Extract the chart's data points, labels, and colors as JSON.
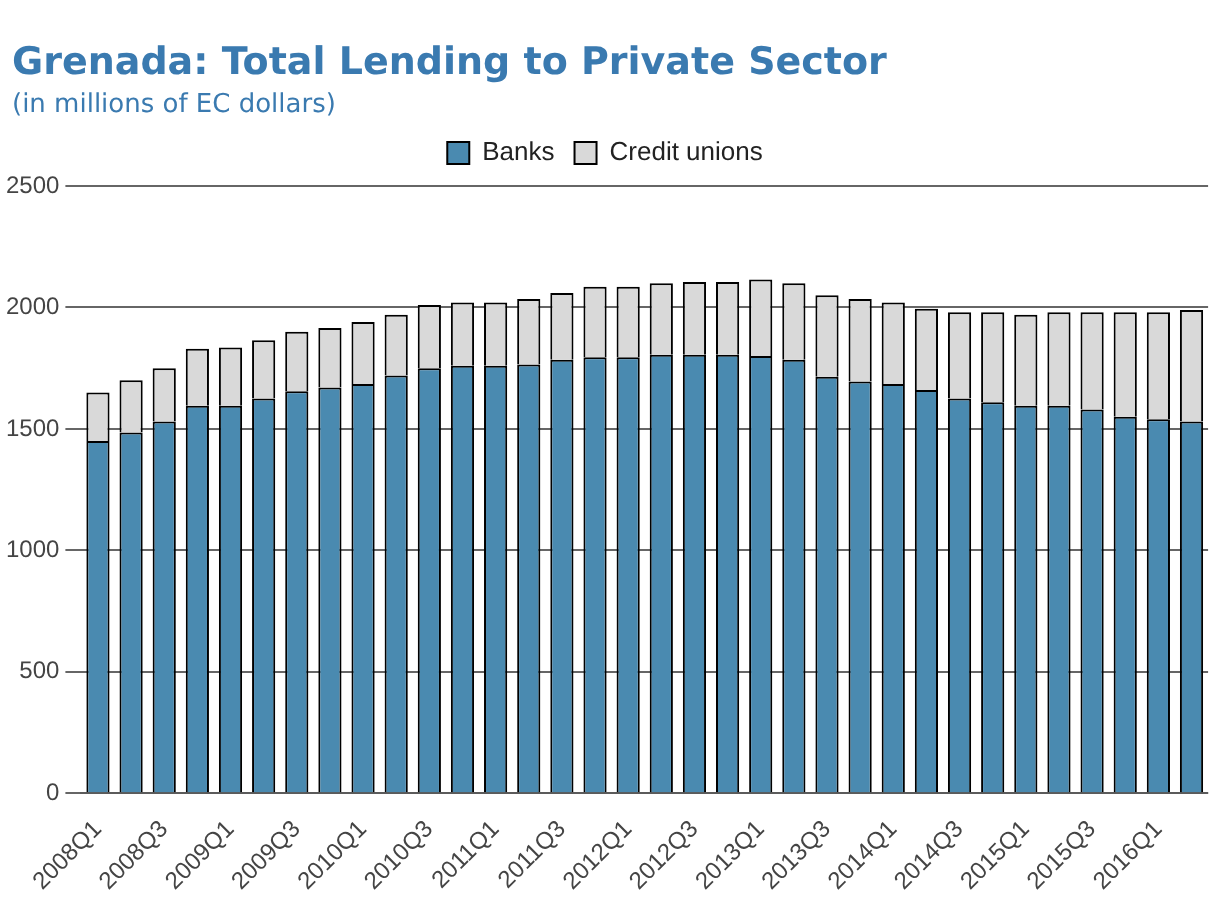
{
  "chart_data": {
    "type": "bar",
    "title": "Grenada: Total Lending to Private Sector",
    "subtitle": "(in millions of EC dollars)",
    "categories": [
      "2008Q1",
      null,
      "2008Q3",
      null,
      "2009Q1",
      null,
      "2009Q3",
      null,
      "2010Q1",
      null,
      "2010Q3",
      null,
      "2011Q1",
      null,
      "2011Q3",
      null,
      "2012Q1",
      null,
      "2012Q3",
      null,
      "2013Q1",
      null,
      "2013Q3",
      null,
      "2014Q1",
      null,
      "2014Q3",
      null,
      "2015Q1",
      null,
      "2015Q3",
      null,
      "2016Q1",
      null
    ],
    "stacked": true,
    "series": [
      {
        "name": "Banks",
        "color": "#4a8ab0",
        "values": [
          1450,
          1485,
          1530,
          1595,
          1595,
          1625,
          1655,
          1670,
          1685,
          1720,
          1750,
          1760,
          1760,
          1765,
          1785,
          1795,
          1795,
          1805,
          1805,
          1805,
          1800,
          1785,
          1715,
          1695,
          1685,
          1660,
          1625,
          1610,
          1595,
          1595,
          1580,
          1550,
          1540,
          1530
        ]
      },
      {
        "name": "Credit unions",
        "color": "#d9d9d9",
        "values": [
          200,
          215,
          220,
          235,
          240,
          240,
          245,
          245,
          255,
          250,
          260,
          260,
          260,
          270,
          275,
          290,
          290,
          295,
          300,
          300,
          315,
          315,
          335,
          340,
          335,
          335,
          355,
          370,
          375,
          385,
          400,
          430,
          440,
          460
        ]
      }
    ],
    "ylim": [
      0,
      2500
    ],
    "yticks": [
      0,
      500,
      1000,
      1500,
      2000,
      2500
    ],
    "grid": "y",
    "legend": "top"
  }
}
